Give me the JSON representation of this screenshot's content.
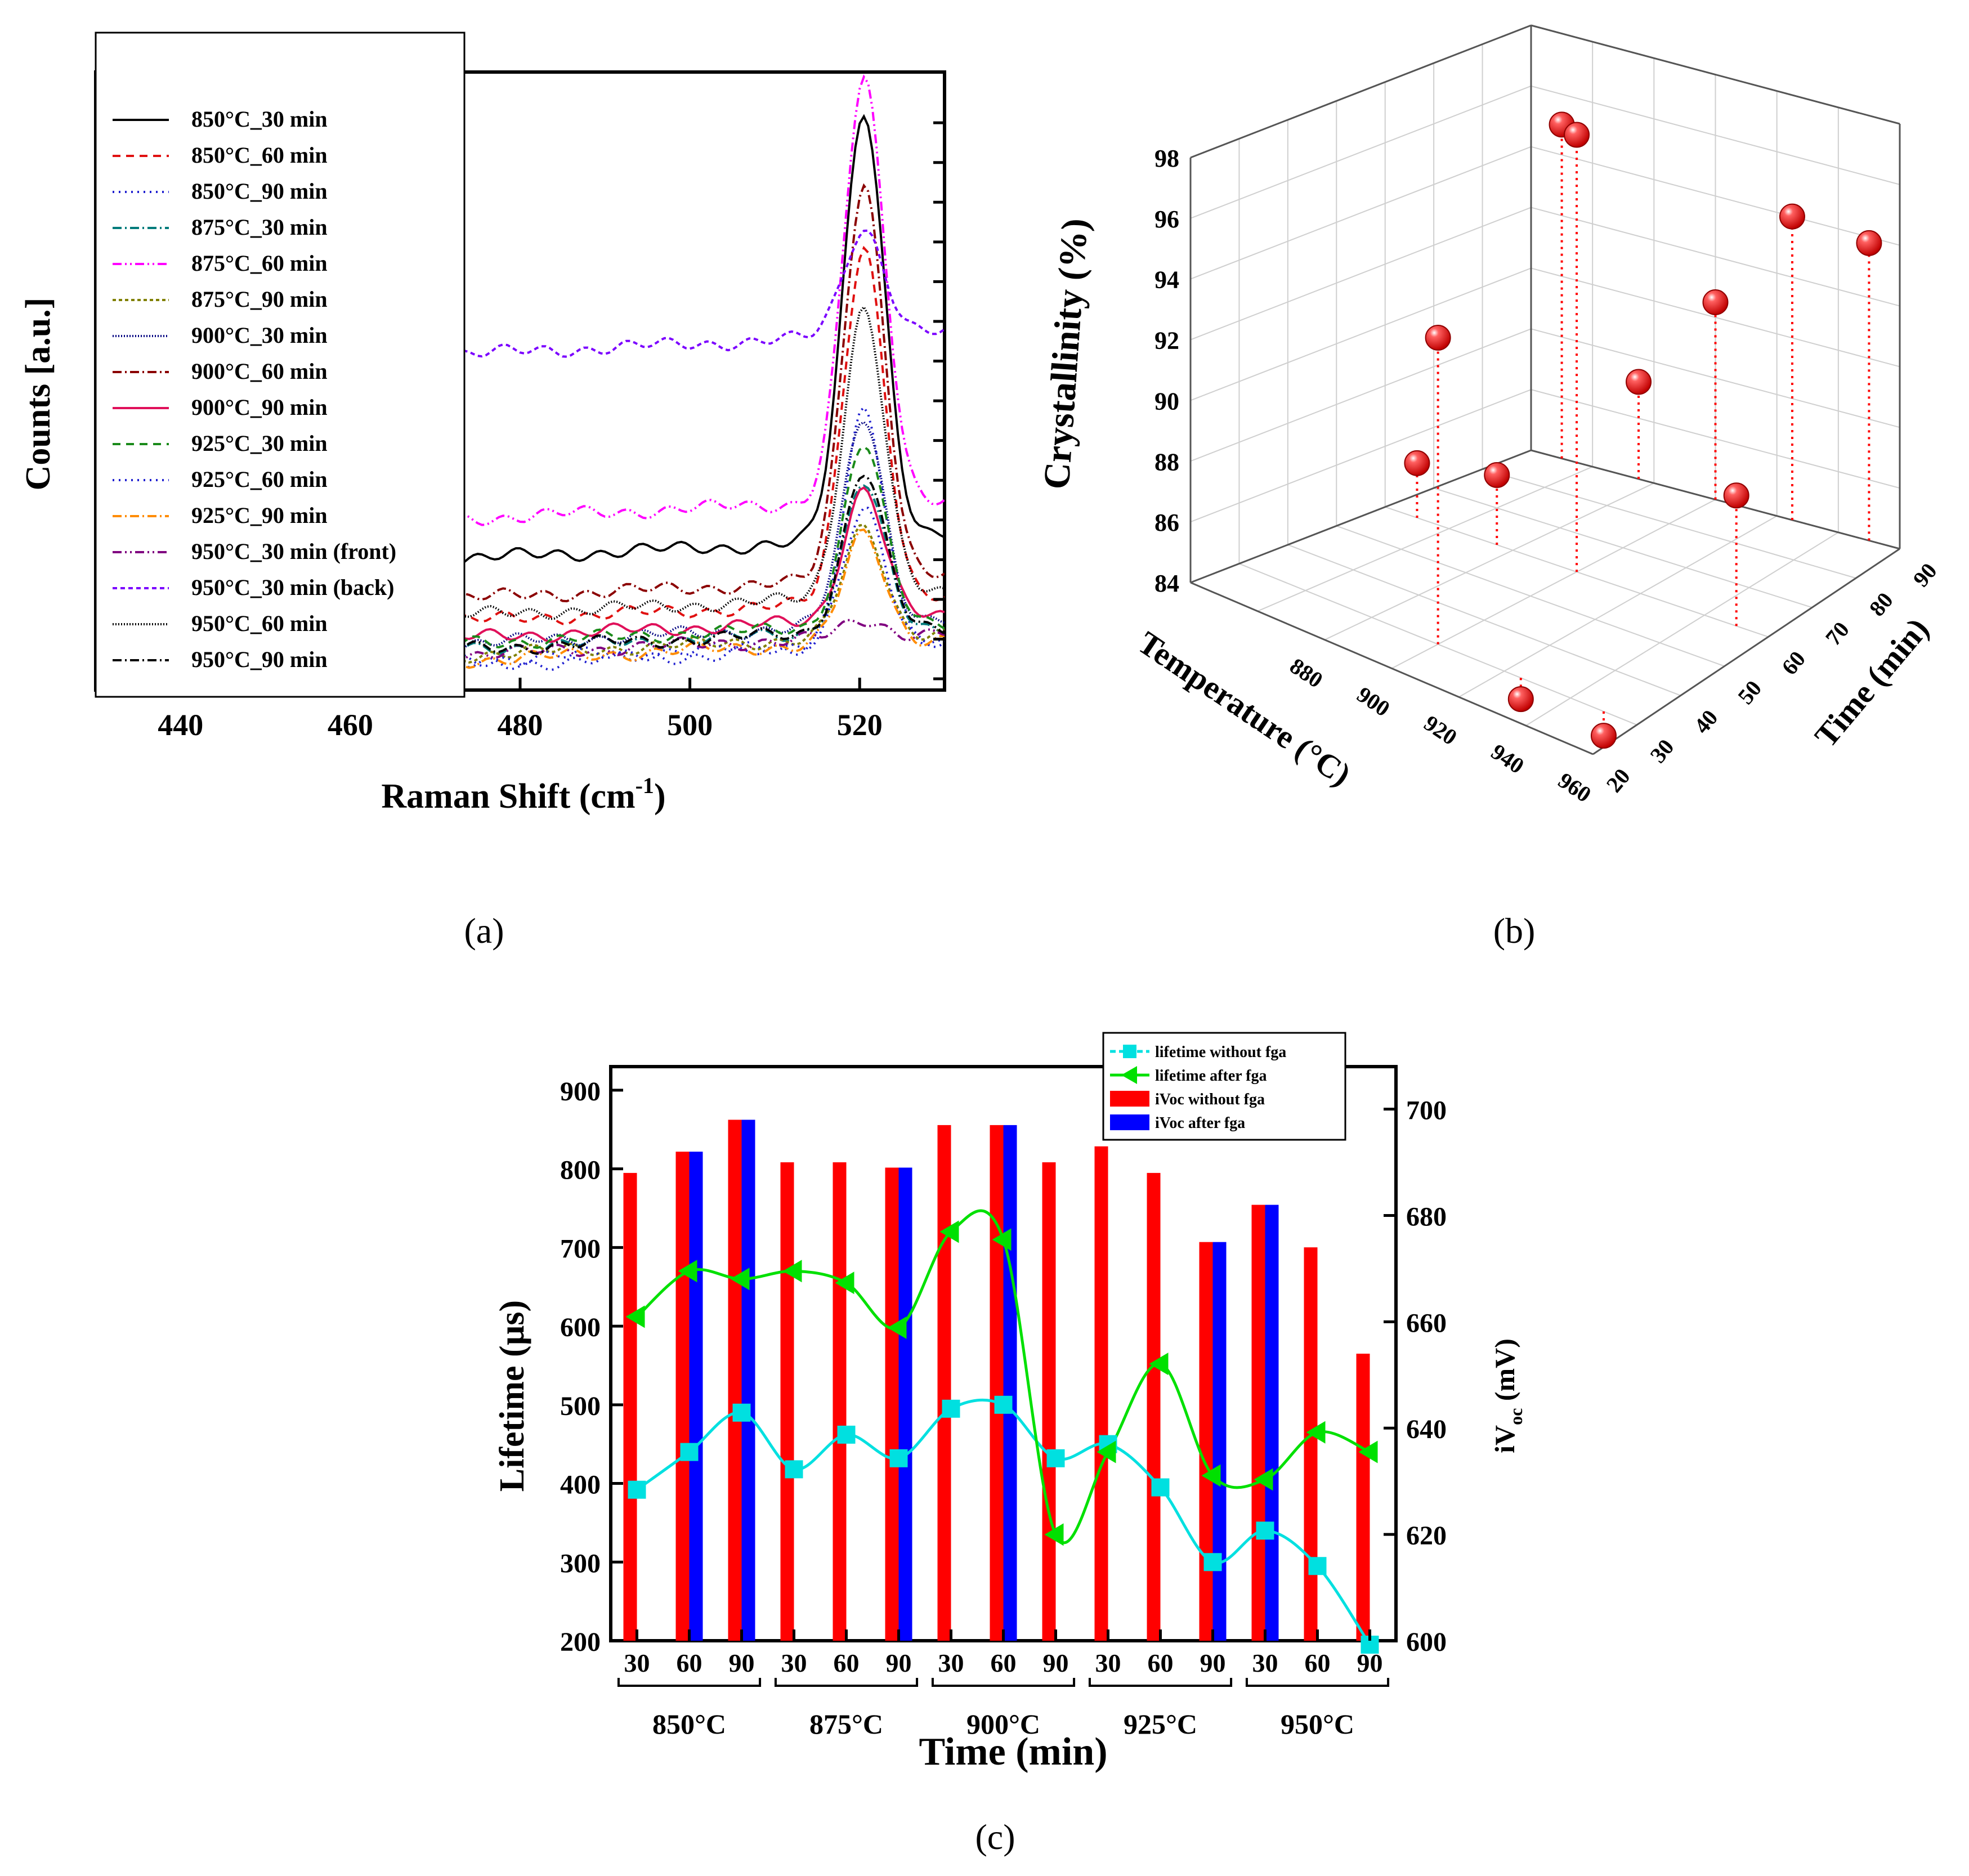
{
  "panels": {
    "a": "(a)",
    "b": "(b)",
    "c": "(c)"
  },
  "chart_data": [
    {
      "id": "a",
      "type": "line",
      "title": "",
      "xlabel": "Raman Shift (cm",
      "xlabel_sup": "-1",
      "xlabel_end": ")",
      "ylabel": "Counts [a.u.]",
      "xlim": [
        430,
        530
      ],
      "ylim": [
        0,
        100
      ],
      "xticks": [
        440,
        460,
        480,
        500,
        520
      ],
      "series": [
        {
          "name": "850°C_30 min",
          "color": "#000000",
          "dash": "",
          "base": 21,
          "peak": 97
        },
        {
          "name": "850°C_60 min",
          "color": "#e01010",
          "dash": "14,10",
          "base": 10,
          "peak": 73
        },
        {
          "name": "850°C_90 min",
          "color": "#2020d0",
          "dash": "3,8",
          "base": 2,
          "peak": 44
        },
        {
          "name": "875°C_30 min",
          "color": "#007b7b",
          "dash": "16,6,3,6",
          "base": 5,
          "peak": 31
        },
        {
          "name": "875°C_60 min",
          "color": "#ff00ff",
          "dash": "16,6,3,6,3,6",
          "base": 28,
          "peak": 102
        },
        {
          "name": "875°C_90 min",
          "color": "#808000",
          "dash": "6,5",
          "base": 4,
          "peak": 23
        },
        {
          "name": "900°C_30 min",
          "color": "#000080",
          "dash": "2,3",
          "base": 6,
          "peak": 43
        },
        {
          "name": "900°C_60 min",
          "color": "#8b0000",
          "dash": "16,6,3,6",
          "base": 14,
          "peak": 84
        },
        {
          "name": "900°C_90 min",
          "color": "#e0105a",
          "dash": "",
          "base": 7,
          "peak": 30
        },
        {
          "name": "925°C_30 min",
          "color": "#1a8a1a",
          "dash": "14,10",
          "base": 6,
          "peak": 38
        },
        {
          "name": "925°C_60 min",
          "color": "#2020d0",
          "dash": "3,8",
          "base": 3,
          "peak": 26
        },
        {
          "name": "925°C_90 min",
          "color": "#ff8c00",
          "dash": "16,6,3,6",
          "base": 3,
          "peak": 22
        },
        {
          "name": "950°C_30 min (front)",
          "color": "#800080",
          "dash": "16,6,3,6,3,6",
          "base": 4,
          "peak": 7
        },
        {
          "name": "950°C_30 min (back)",
          "color": "#7b00ff",
          "dash": "8,6",
          "base": 57,
          "peak": 76
        },
        {
          "name": "950°C_60 min",
          "color": "#000000",
          "dash": "2,3",
          "base": 11,
          "peak": 62
        },
        {
          "name": "950°C_90 min",
          "color": "#000000",
          "dash": "16,6,3,6",
          "base": 5,
          "peak": 33
        }
      ]
    },
    {
      "id": "b",
      "type": "scatter",
      "title": "",
      "xlabel": "Temperature (°C)",
      "ylabel": "Time (min)",
      "zlabel": "Crystallinity (%)",
      "xlim": [
        840,
        960
      ],
      "ylim": [
        20,
        90
      ],
      "zlim": [
        84,
        98
      ],
      "xticks": [
        880,
        900,
        920,
        940,
        960
      ],
      "yticks": [
        20,
        30,
        40,
        50,
        60,
        70,
        80,
        90
      ],
      "zticks": [
        84,
        86,
        88,
        90,
        92,
        94,
        96,
        98
      ],
      "points": [
        {
          "t": 850,
          "m": 90,
          "c": 95.0
        },
        {
          "t": 850,
          "m": 60,
          "c": 85.8
        },
        {
          "t": 875,
          "m": 90,
          "c": 87.2
        },
        {
          "t": 875,
          "m": 60,
          "c": 86.3
        },
        {
          "t": 900,
          "m": 90,
          "c": 90.5
        },
        {
          "t": 900,
          "m": 60,
          "c": 98.4
        },
        {
          "t": 900,
          "m": 30,
          "c": 94.1
        },
        {
          "t": 925,
          "m": 90,
          "c": 94.0
        },
        {
          "t": 925,
          "m": 30,
          "c": 83.3
        },
        {
          "t": 950,
          "m": 90,
          "c": 93.8
        },
        {
          "t": 950,
          "m": 60,
          "c": 88.3
        },
        {
          "t": 950,
          "m": 30,
          "c": 83.2
        }
      ]
    },
    {
      "id": "c",
      "type": "bar",
      "title": "",
      "xlabel": "Time (min)",
      "ylabel": "Lifetime (µs)",
      "y2label": "iV",
      "y2label_sub": "oc",
      "y2label_end": " (mV)",
      "ylim": [
        200,
        930
      ],
      "y2lim": [
        600,
        708
      ],
      "yticks": [
        200,
        300,
        400,
        500,
        600,
        700,
        800,
        900
      ],
      "y2ticks": [
        600,
        620,
        640,
        660,
        680,
        700
      ],
      "categories": [
        "30",
        "60",
        "90",
        "30",
        "60",
        "90",
        "30",
        "60",
        "90",
        "30",
        "60",
        "90",
        "30",
        "60",
        "90"
      ],
      "groups": [
        "850°C",
        "875°C",
        "900°C",
        "925°C",
        "950°C"
      ],
      "legend": [
        "lifetime without fga",
        "lifetime after fga",
        "iVoc without fga",
        "iVoc after fga"
      ],
      "series": [
        {
          "name": "iVoc without fga",
          "axis": "right",
          "color": "#ff0000",
          "values": [
            688,
            692,
            698,
            690,
            690,
            689,
            697,
            697,
            690,
            693,
            688,
            675,
            682,
            674,
            654
          ]
        },
        {
          "name": "iVoc after fga",
          "axis": "right",
          "color": "#0000ff",
          "values": [
            null,
            692,
            698,
            null,
            null,
            689,
            null,
            697,
            null,
            null,
            null,
            675,
            682,
            null,
            null
          ]
        },
        {
          "name": "lifetime without fga",
          "axis": "left",
          "color": "#00e0e0",
          "values": [
            392,
            440,
            490,
            418,
            462,
            432,
            495,
            500,
            432,
            450,
            395,
            300,
            340,
            295,
            195
          ]
        },
        {
          "name": "lifetime after fga",
          "axis": "left",
          "color": "#00e000",
          "values": [
            612,
            670,
            660,
            670,
            655,
            598,
            720,
            710,
            335,
            440,
            552,
            410,
            405,
            465,
            440
          ]
        }
      ]
    }
  ]
}
